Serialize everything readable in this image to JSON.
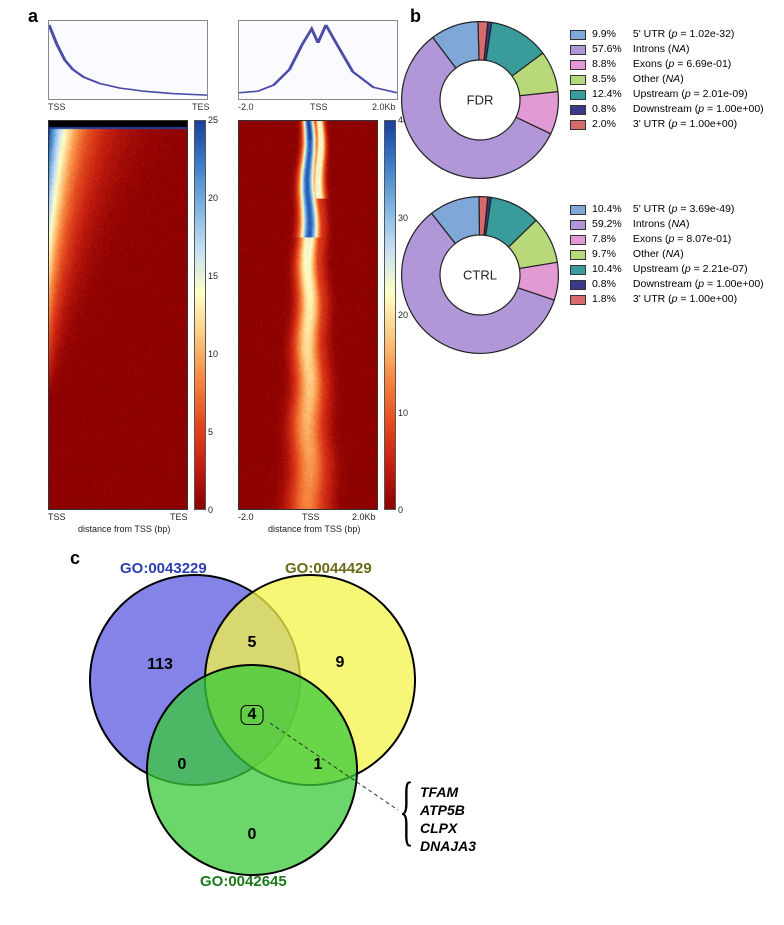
{
  "panel_labels": {
    "a": "a",
    "b": "b",
    "c": "c"
  },
  "colors": {
    "heatmap_stops": [
      "#8b0000",
      "#c41e10",
      "#e34a1f",
      "#f7853e",
      "#fdc97e",
      "#ffffc4",
      "#c7e0f4",
      "#7fb4e2",
      "#3a7dc9",
      "#1a3f9c"
    ],
    "profile_line": "#4b4ba8",
    "profile_bg": "#fbfbff",
    "pie_slices": {
      "utr5": "#7fa7d8",
      "introns": "#b197d8",
      "exons": "#e19ad4",
      "other": "#b7d97a",
      "upstream": "#3a9b9b",
      "downstream": "#3a3a8a",
      "utr3": "#d76a6a"
    },
    "venn": {
      "a": "#5a5ae0",
      "b": "#f4f44a",
      "c": "#3aca3a",
      "a_label": "#2a3fb0",
      "b_label": "#6a6a18",
      "c_label": "#1a7a1a"
    }
  },
  "panel_a": {
    "left": {
      "profile": {
        "x_start": "TSS",
        "x_end": "TES",
        "points": [
          [
            0,
            0.95
          ],
          [
            0.05,
            0.7
          ],
          [
            0.1,
            0.5
          ],
          [
            0.15,
            0.38
          ],
          [
            0.22,
            0.28
          ],
          [
            0.32,
            0.2
          ],
          [
            0.45,
            0.14
          ],
          [
            0.6,
            0.1
          ],
          [
            0.78,
            0.07
          ],
          [
            1.0,
            0.05
          ]
        ]
      },
      "heatmap": {
        "x_start": "TSS",
        "x_end": "TES",
        "xlabel": "distance from TSS (bp)",
        "cbar_max": 25,
        "cbar_ticks": [
          0,
          5,
          10,
          15,
          20,
          25
        ],
        "pattern": "left-sorted-decay"
      }
    },
    "right": {
      "profile": {
        "x_start": "-2.0",
        "x_center": "TSS",
        "x_end": "2.0Kb",
        "points": [
          [
            0,
            0.08
          ],
          [
            0.12,
            0.1
          ],
          [
            0.22,
            0.18
          ],
          [
            0.32,
            0.38
          ],
          [
            0.4,
            0.7
          ],
          [
            0.46,
            0.9
          ],
          [
            0.5,
            0.72
          ],
          [
            0.55,
            0.95
          ],
          [
            0.62,
            0.7
          ],
          [
            0.72,
            0.35
          ],
          [
            0.85,
            0.15
          ],
          [
            1.0,
            0.08
          ]
        ]
      },
      "heatmap": {
        "x_start": "-2.0",
        "x_center": "TSS",
        "x_end": "2.0Kb",
        "xlabel": "distance from TSS (bp)",
        "cbar_max": 40,
        "cbar_ticks": [
          0,
          10,
          20,
          30,
          40
        ],
        "pattern": "center-peak"
      }
    }
  },
  "panel_b": {
    "donuts": [
      {
        "label": "FDR",
        "slices": [
          {
            "key": "utr5",
            "pct": 9.9,
            "name": "5' UTR",
            "p": "1.02e-32"
          },
          {
            "key": "introns",
            "pct": 57.6,
            "name": "Introns",
            "p": "NA"
          },
          {
            "key": "exons",
            "pct": 8.8,
            "name": "Exons",
            "p": "6.69e-01"
          },
          {
            "key": "other",
            "pct": 8.5,
            "name": "Other",
            "p": "NA"
          },
          {
            "key": "upstream",
            "pct": 12.4,
            "name": "Upstream",
            "p": "2.01e-09"
          },
          {
            "key": "downstream",
            "pct": 0.8,
            "name": "Downstream",
            "p": "1.00e+00"
          },
          {
            "key": "utr3",
            "pct": 2.0,
            "name": "3' UTR",
            "p": "1.00e+00"
          }
        ]
      },
      {
        "label": "CTRL",
        "slices": [
          {
            "key": "utr5",
            "pct": 10.4,
            "name": "5' UTR",
            "p": "3.69e-49"
          },
          {
            "key": "introns",
            "pct": 59.2,
            "name": "Introns",
            "p": "NA"
          },
          {
            "key": "exons",
            "pct": 7.8,
            "name": "Exons",
            "p": "8.07e-01"
          },
          {
            "key": "other",
            "pct": 9.7,
            "name": "Other",
            "p": "NA"
          },
          {
            "key": "upstream",
            "pct": 10.4,
            "name": "Upstream",
            "p": "2.21e-07"
          },
          {
            "key": "downstream",
            "pct": 0.8,
            "name": "Downstream",
            "p": "1.00e+00"
          },
          {
            "key": "utr3",
            "pct": 1.8,
            "name": "3' UTR",
            "p": "1.00e+00"
          }
        ]
      }
    ]
  },
  "panel_c": {
    "sets": [
      {
        "go": "GO:0043229",
        "color_key": "a"
      },
      {
        "go": "GO:0044429",
        "color_key": "b"
      },
      {
        "go": "GO:0042645",
        "color_key": "c"
      }
    ],
    "counts": {
      "only_a": 113,
      "only_b": 9,
      "only_c": 0,
      "ab": 5,
      "ac": 0,
      "bc": 1,
      "abc": 4
    },
    "center_genes": [
      "TFAM",
      "ATP5B",
      "CLPX",
      "DNAJA3"
    ]
  }
}
